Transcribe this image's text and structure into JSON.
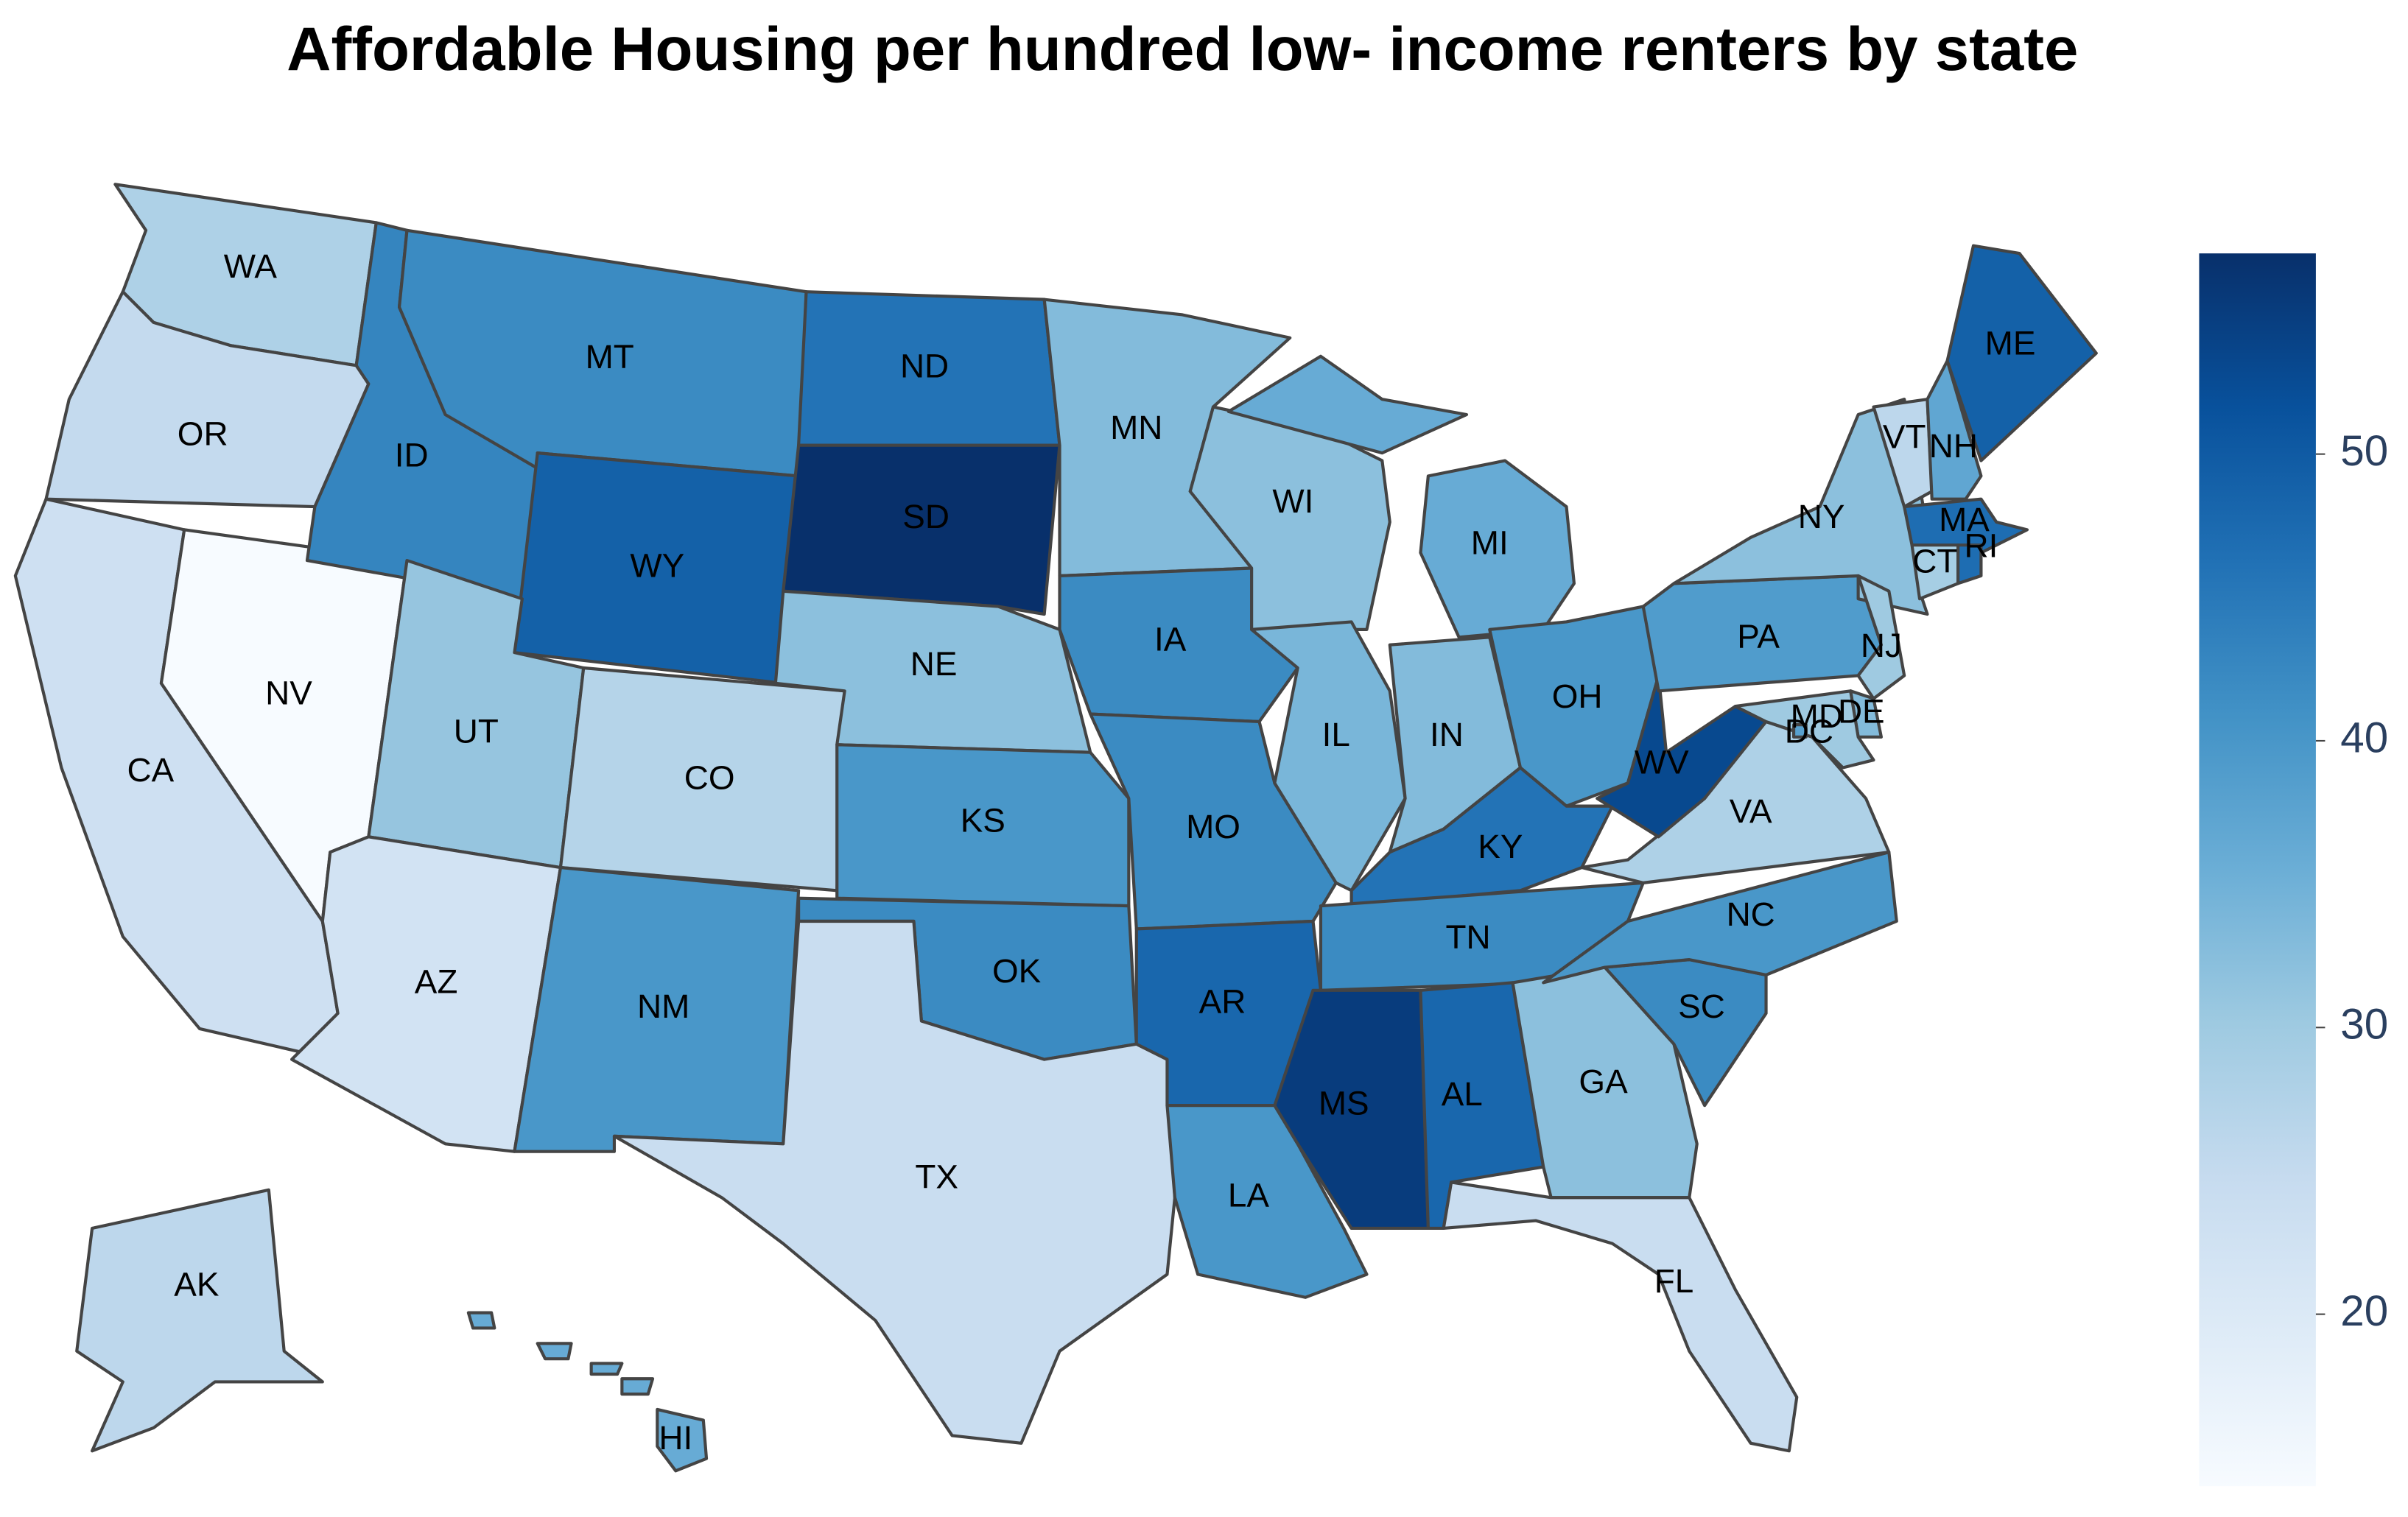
{
  "chart_data": {
    "type": "choropleth",
    "title": "Affordable Housing per hundred low- income renters by state",
    "locations": [
      "WA",
      "OR",
      "CA",
      "NV",
      "ID",
      "MT",
      "WY",
      "UT",
      "CO",
      "AZ",
      "NM",
      "ND",
      "SD",
      "NE",
      "KS",
      "OK",
      "TX",
      "MN",
      "IA",
      "MO",
      "AR",
      "LA",
      "WI",
      "IL",
      "MI",
      "IN",
      "OH",
      "KY",
      "TN",
      "MS",
      "AL",
      "GA",
      "FL",
      "SC",
      "NC",
      "VA",
      "WV",
      "PA",
      "NY",
      "NJ",
      "DE",
      "MD",
      "DC",
      "VT",
      "NH",
      "ME",
      "MA",
      "CT",
      "RI",
      "AK",
      "HI"
    ],
    "values": [
      28,
      25,
      23,
      14,
      43,
      42,
      49,
      31,
      27,
      22,
      40,
      46,
      57,
      32,
      40,
      42,
      24,
      33,
      42,
      42,
      48,
      40,
      32,
      34,
      36,
      33,
      40,
      46,
      42,
      55,
      48,
      32,
      24,
      42,
      40,
      28,
      53,
      39,
      32,
      30,
      33,
      30,
      38,
      26,
      37,
      49,
      47,
      29,
      47,
      26,
      36
    ],
    "colorscale": [
      [
        0,
        "rgb(247,251,255)"
      ],
      [
        0.125,
        "rgb(222,235,247)"
      ],
      [
        0.25,
        "rgb(198,219,239)"
      ],
      [
        0.375,
        "rgb(158,202,225)"
      ],
      [
        0.5,
        "rgb(107,174,214)"
      ],
      [
        0.625,
        "rgb(66,146,198)"
      ],
      [
        0.75,
        "rgb(33,113,181)"
      ],
      [
        0.875,
        "rgb(8,81,156)"
      ],
      [
        1,
        "rgb(8,48,107)"
      ]
    ],
    "zlim": [
      14,
      57
    ],
    "zticks": [
      20,
      30,
      40,
      50
    ]
  }
}
